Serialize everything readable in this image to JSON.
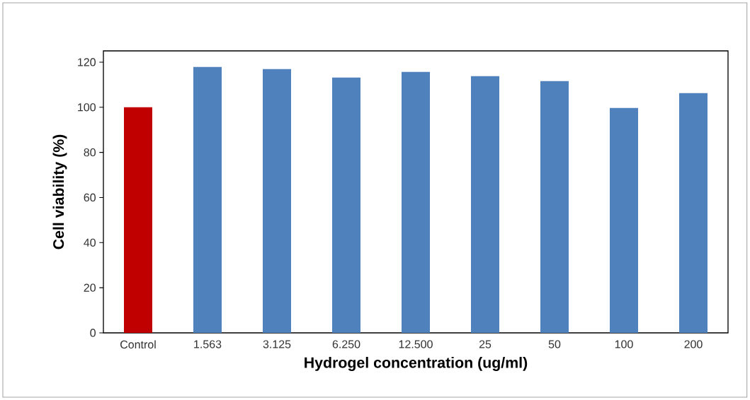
{
  "chart_data": {
    "type": "bar",
    "xlabel": "Hydrogel concentration (ug/ml)",
    "ylabel": "Cell viability (%)",
    "categories": [
      "Control",
      "1.563",
      "3.125",
      "6.250",
      "12.500",
      "25",
      "50",
      "100",
      "200"
    ],
    "values": [
      100,
      117.9,
      116.9,
      113.2,
      115.7,
      113.8,
      111.6,
      99.7,
      106.3
    ],
    "colors": [
      "#c00000",
      "#4f81bd",
      "#4f81bd",
      "#4f81bd",
      "#4f81bd",
      "#4f81bd",
      "#4f81bd",
      "#4f81bd",
      "#4f81bd"
    ],
    "ylim": [
      0,
      125
    ],
    "yticks": [
      0,
      20,
      40,
      60,
      80,
      100,
      120
    ],
    "grid": false
  }
}
